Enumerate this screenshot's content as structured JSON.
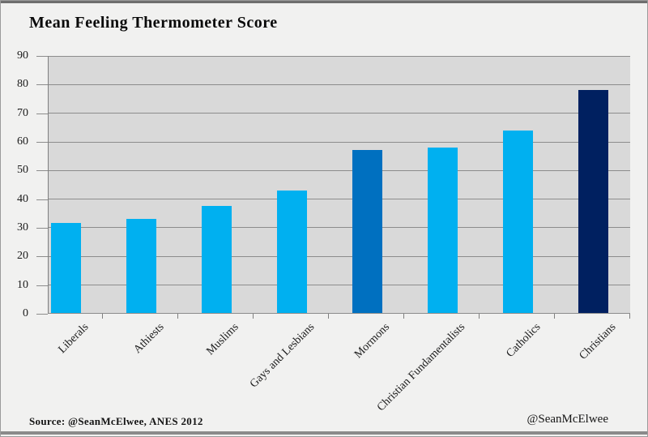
{
  "title": "Mean Feeling Thermometer Score",
  "footer": {
    "source": "Source: @SeanMcElwee, ANES 2012",
    "credit": "@SeanMcElwee"
  },
  "chart_data": {
    "type": "bar",
    "title": "Mean Feeling Thermometer Score",
    "categories": [
      "Liberals",
      "Athiests",
      "Muslims",
      "Gays and Lesbians",
      "Mormons",
      "Christian Fundamentalists",
      "Catholics",
      "Christians"
    ],
    "values": [
      31.5,
      33,
      37.5,
      43,
      57,
      58,
      64,
      78
    ],
    "bar_colors": [
      "#00B0F0",
      "#00B0F0",
      "#00B0F0",
      "#00B0F0",
      "#0070C0",
      "#00B0F0",
      "#00B0F0",
      "#002060"
    ],
    "xlabel": "",
    "ylabel": "",
    "ylim": [
      0,
      90
    ],
    "y_ticks": [
      90,
      80,
      70,
      60,
      50,
      40,
      30,
      20,
      10,
      0
    ],
    "grid": "horizontal",
    "legend": "none"
  },
  "colors": {
    "plot_background": "#d9d9d9",
    "page_background": "#f1f1f0",
    "gridline": "#8c8c8c",
    "axis": "#7f7f7f",
    "bar_default": "#00B0F0",
    "bar_highlight_medium": "#0070C0",
    "bar_highlight_dark": "#002060"
  }
}
